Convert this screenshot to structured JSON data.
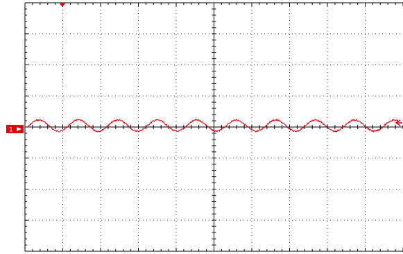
{
  "scope": {
    "channel": {
      "label": "1",
      "color": "#e8000a"
    },
    "graticule": {
      "divisions_x": 10,
      "divisions_y": 8,
      "minor_ticks_per_div": 5,
      "grid_style": "dotted",
      "color": "#000000"
    },
    "trigger": {
      "color": "#e8000a"
    },
    "waveform": {
      "shape": "sine",
      "cycles_on_screen": 9.4,
      "amplitude_div": 0.18,
      "color": "#e8000a"
    }
  }
}
